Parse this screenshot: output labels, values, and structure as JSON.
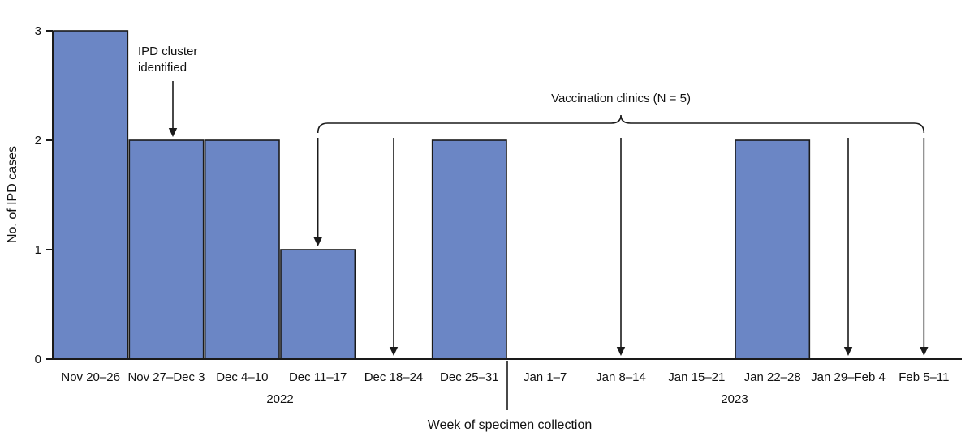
{
  "chart_data": {
    "type": "bar",
    "categories": [
      "Nov 20–26",
      "Nov 27–Dec 3",
      "Dec 4–10",
      "Dec 11–17",
      "Dec 18–24",
      "Dec 25–31",
      "Jan 1–7",
      "Jan 8–14",
      "Jan 15–21",
      "Jan 22–28",
      "Jan 29–Feb 4",
      "Feb 5–11"
    ],
    "values": [
      3,
      2,
      2,
      1,
      0,
      2,
      0,
      0,
      0,
      2,
      0,
      0
    ],
    "xlabel": "Week of specimen collection",
    "ylabel": "No. of IPD cases",
    "ylim": [
      0,
      3
    ],
    "yticks": [
      0,
      1,
      2,
      3
    ],
    "grid": false,
    "legend": "none",
    "bar_color": "#6b86c5",
    "bar_border_color": "#1a1a1a",
    "axis_color": "#1a1a1a",
    "year_labels": [
      {
        "text": "2022",
        "boundary_index": 3
      },
      {
        "text": "2023",
        "boundary_index": 9
      }
    ],
    "year_divider_boundary_index": 6,
    "annotations": {
      "cluster": {
        "lines": [
          "IPD cluster",
          "identified"
        ],
        "category_index": 1,
        "points_to_value": 2
      },
      "vaccination_clinics": {
        "label": "Vaccination clinics (N = 5)",
        "count": 5,
        "brace_from_category_index": 3,
        "brace_to_category_index": 11,
        "arrows": [
          {
            "category_index": 3,
            "points_to_value": 1
          },
          {
            "category_index": 4,
            "points_to_value": 0
          },
          {
            "category_index": 7,
            "points_to_value": 0
          },
          {
            "category_index": 10,
            "points_to_value": 0
          },
          {
            "category_index": 11,
            "points_to_value": 0
          }
        ]
      }
    }
  }
}
